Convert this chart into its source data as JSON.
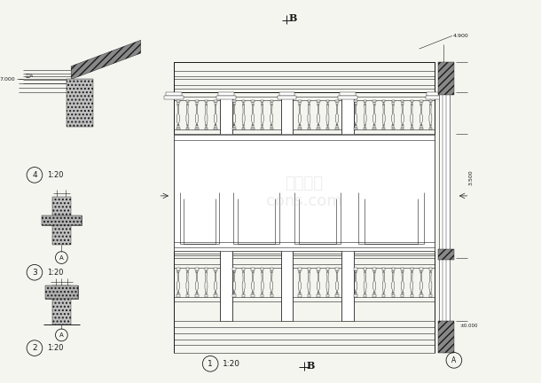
{
  "bg_color": "#f5f5f0",
  "line_color": "#1a1a1a",
  "dim_4900": "4.900",
  "dim_3500": "3.500",
  "dim_10000": "±0.000",
  "dim_7000": "7.000",
  "label_roof": "屋脊A"
}
